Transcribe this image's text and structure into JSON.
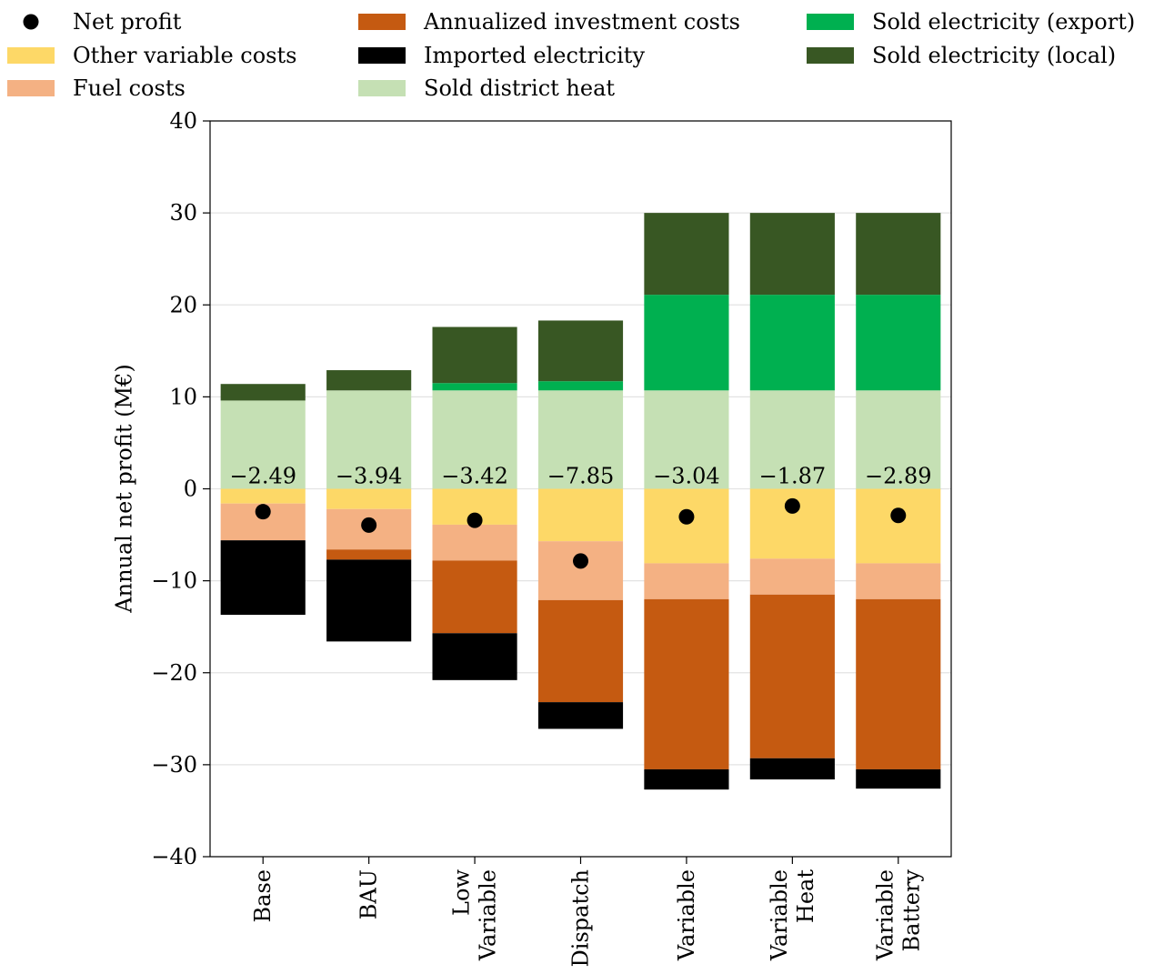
{
  "chart_data": {
    "type": "bar",
    "stacked": true,
    "ylabel": "Annual net profit (M€)",
    "ylim": [
      -40,
      40
    ],
    "yticks": [
      -40,
      -30,
      -20,
      -10,
      0,
      10,
      20,
      30,
      40
    ],
    "ytick_labels": [
      "−40",
      "−30",
      "−20",
      "−10",
      "0",
      "10",
      "20",
      "30",
      "40"
    ],
    "grid": "horizontal",
    "legend_position": "top",
    "categories": [
      [
        "Base"
      ],
      [
        "BAU"
      ],
      [
        "Low",
        "Variable"
      ],
      [
        "Dispatch"
      ],
      [
        "Variable"
      ],
      [
        "Variable",
        "Heat"
      ],
      [
        "Variable",
        "Battery"
      ]
    ],
    "series": [
      {
        "name": "Other variable costs",
        "color": "#FDD867",
        "values": [
          -1.6,
          -2.2,
          -3.9,
          -5.7,
          -8.1,
          -7.6,
          -8.1
        ]
      },
      {
        "name": "Fuel costs",
        "color": "#F4B183",
        "values": [
          -4.0,
          -4.4,
          -3.9,
          -6.4,
          -3.9,
          -3.9,
          -3.9
        ]
      },
      {
        "name": "Annualized investment costs",
        "color": "#C55A11",
        "values": [
          0,
          -1.1,
          -7.9,
          -11.1,
          -18.5,
          -17.8,
          -18.5
        ]
      },
      {
        "name": "Imported electricity",
        "color": "#000000",
        "values": [
          -8.1,
          -8.9,
          -5.1,
          -2.9,
          -2.2,
          -2.3,
          -2.1
        ]
      },
      {
        "name": "Sold district heat",
        "color": "#C5E0B4",
        "values": [
          9.6,
          10.7,
          10.7,
          10.7,
          10.7,
          10.7,
          10.7
        ]
      },
      {
        "name": "Sold electricity (export)",
        "color": "#00B050",
        "values": [
          0,
          0,
          0.8,
          1.0,
          10.4,
          10.4,
          10.4
        ]
      },
      {
        "name": "Sold electricity (local)",
        "color": "#385723",
        "values": [
          1.8,
          2.2,
          6.1,
          6.6,
          8.9,
          8.9,
          8.9
        ]
      }
    ],
    "net_profit": {
      "name": "Net profit",
      "color": "#000000",
      "values": [
        -2.49,
        -3.94,
        -3.42,
        -7.85,
        -3.04,
        -1.87,
        -2.89
      ],
      "labels": [
        "−2.49",
        "−3.94",
        "−3.42",
        "−7.85",
        "−3.04",
        "−1.87",
        "−2.89"
      ]
    },
    "legend_order": [
      "Net profit",
      "Other variable costs",
      "Fuel costs",
      "Annualized investment costs",
      "Imported electricity",
      "Sold district heat",
      "Sold electricity (export)",
      "Sold electricity (local)"
    ]
  }
}
